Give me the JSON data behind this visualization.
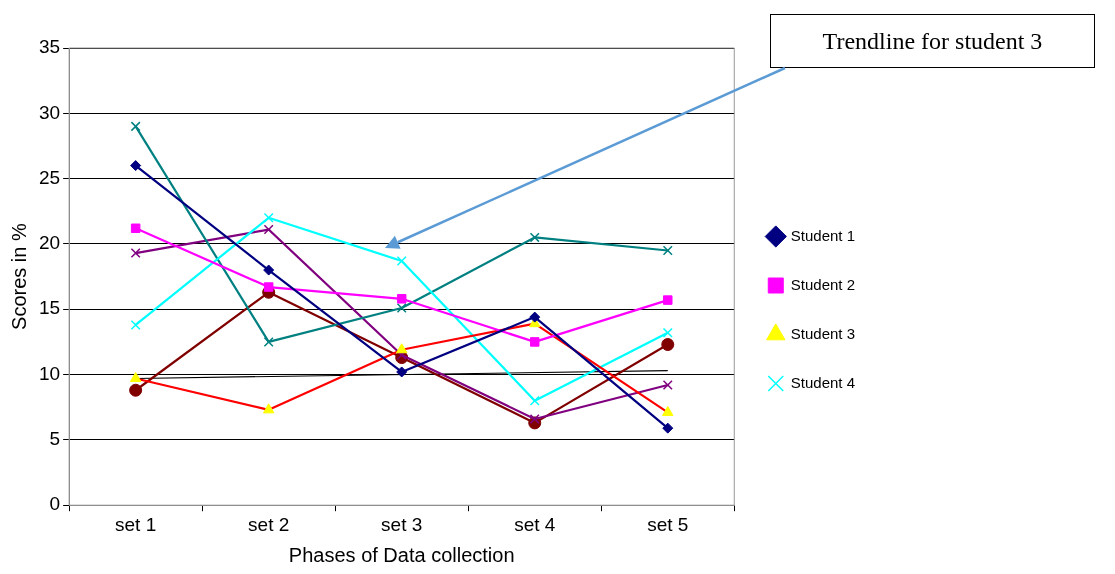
{
  "chart_data": {
    "type": "line",
    "xlabel": "Phases of Data collection",
    "ylabel": "Scores in %",
    "categories": [
      "set 1",
      "set 2",
      "set 3",
      "set 4",
      "set 5"
    ],
    "series": [
      {
        "name": "Student 1",
        "color": "#000080",
        "marker": "diamond",
        "values": [
          26,
          18,
          10.2,
          14.4,
          5.9
        ]
      },
      {
        "name": "Student 2",
        "color": "#ff00ff",
        "marker": "square",
        "values": [
          21.2,
          16.7,
          15.8,
          12.5,
          15.7
        ]
      },
      {
        "name": "Student 3",
        "color": "#ff0000",
        "marker": "triangle",
        "values": [
          9.7,
          7.3,
          11.9,
          13.9,
          7.1
        ]
      },
      {
        "name": "Student 4",
        "color": "#00ffff",
        "marker": "cross",
        "values": [
          13.8,
          22,
          18.7,
          8,
          13.2
        ]
      },
      {
        "color": "#008080",
        "marker": "cross",
        "values": [
          29,
          12.5,
          15.1,
          20.5,
          19.5
        ]
      },
      {
        "color": "#800080",
        "marker": "cross",
        "values": [
          19.3,
          21.1,
          11.5,
          6.6,
          9.2
        ]
      },
      {
        "color": "#800000",
        "marker": "circle",
        "values": [
          8.8,
          16.3,
          11.3,
          6.3,
          12.3
        ]
      },
      {
        "type": "line",
        "color": "#000000",
        "marker": "none",
        "x": [
          "set 1",
          "set 5"
        ],
        "values": [
          9.7,
          10.3
        ]
      }
    ],
    "ylim": [
      0,
      35
    ],
    "yticks": [
      0,
      5,
      10,
      15,
      20,
      25,
      30,
      35
    ],
    "grid": "y",
    "legend": "right",
    "annotations": [
      "Trendline for student 3"
    ]
  }
}
